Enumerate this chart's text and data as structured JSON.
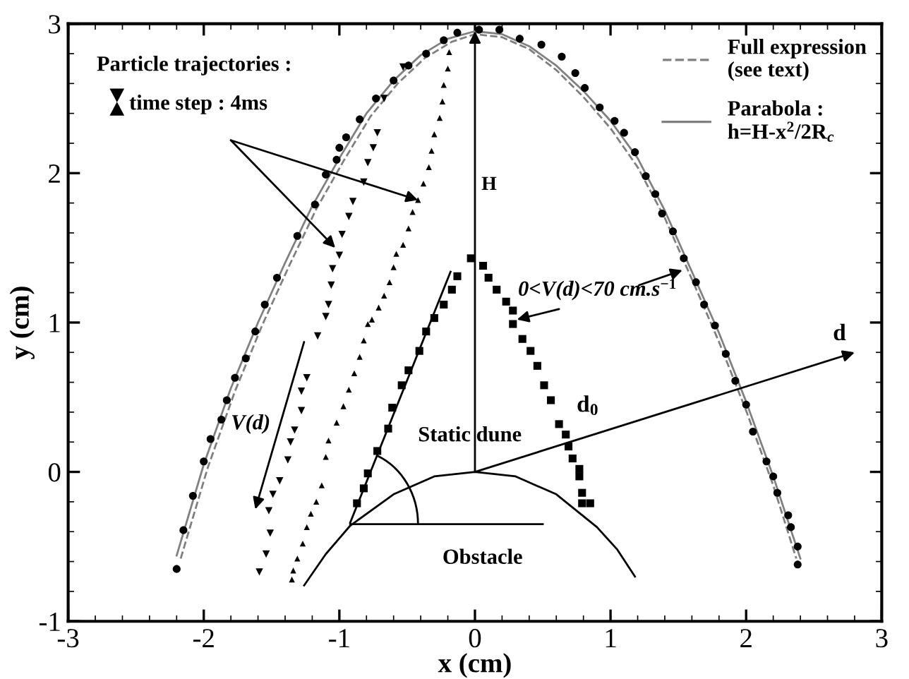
{
  "chart_data": {
    "type": "scatter",
    "xlabel": "x (cm)",
    "ylabel": "y (cm)",
    "xlim": [
      -3,
      3
    ],
    "ylim": [
      -1,
      3
    ],
    "xticks": [
      -3,
      -2,
      -1,
      0,
      1,
      2,
      3
    ],
    "yticks": [
      -1,
      0,
      1,
      2,
      3
    ],
    "grid": false,
    "legend": "top right",
    "annotations": [
      "Particle trajectories :",
      {
        "text": "time step : 4ms",
        "x": -0.42,
        "y": 1.82
      },
      "H",
      "V(d)",
      "0<V(d)<70 cm.s$^{−1}$",
      "d",
      "d$_{0}$",
      "Static dune",
      "Obstacle"
    ],
    "series": [
      {
        "marker": "circle",
        "color": "#000000",
        "x": [
          -2.2,
          -2.15,
          -2.08,
          -2.0,
          -1.95,
          -1.87,
          -1.83,
          -1.77,
          -1.69,
          -1.62,
          -1.55,
          -1.46,
          -1.31,
          -1.18,
          -1.1,
          -1.02,
          -1.0,
          -0.95,
          -0.85,
          -0.73,
          -0.6,
          -0.49,
          -0.36,
          -0.23,
          -0.13,
          0.03,
          0.18,
          0.33,
          0.49,
          0.64,
          0.74,
          0.81,
          0.92,
          1.03,
          1.1,
          1.18,
          1.26,
          1.33,
          1.38,
          1.46,
          1.54,
          1.63,
          1.69,
          1.77,
          1.85,
          1.92,
          2.0,
          2.05,
          2.15,
          2.2,
          2.23,
          2.31,
          2.33,
          2.38,
          2.38
        ],
        "values": [
          -0.65,
          -0.39,
          -0.16,
          0.07,
          0.22,
          0.35,
          0.48,
          0.63,
          0.76,
          0.94,
          1.12,
          1.3,
          1.58,
          1.79,
          1.99,
          2.09,
          2.17,
          2.24,
          2.36,
          2.5,
          2.62,
          2.72,
          2.8,
          2.89,
          2.94,
          2.96,
          2.96,
          2.9,
          2.86,
          2.78,
          2.67,
          2.57,
          2.44,
          2.35,
          2.27,
          2.14,
          1.98,
          1.86,
          1.73,
          1.61,
          1.43,
          1.27,
          1.12,
          0.98,
          0.79,
          0.61,
          0.45,
          0.27,
          0.07,
          -0.03,
          -0.14,
          -0.29,
          -0.37,
          -0.5,
          -0.62
        ]
      },
      {
        "marker": "triangle_down",
        "color": "#000000",
        "x": [
          -0.53,
          -0.67,
          -0.72,
          -0.75,
          -0.79,
          -0.82,
          -0.9,
          -0.93,
          -0.98,
          -1.0,
          -1.05,
          -1.06,
          -1.08,
          -1.1,
          -1.16,
          -1.24,
          -1.28,
          -1.28,
          -1.33,
          -1.36,
          -1.38,
          -1.44,
          -1.49,
          -1.52,
          -1.51,
          -1.54,
          -1.59
        ],
        "values": [
          2.71,
          2.5,
          2.27,
          2.17,
          2.07,
          1.94,
          1.81,
          1.71,
          1.59,
          1.45,
          1.36,
          1.25,
          1.12,
          1.04,
          0.91,
          0.63,
          0.54,
          0.41,
          0.28,
          0.2,
          0.08,
          -0.06,
          -0.15,
          -0.26,
          -0.41,
          -0.55,
          -0.67
        ]
      },
      {
        "marker": "triangle",
        "color": "#000000",
        "x": [
          -0.19,
          -0.2,
          -0.23,
          -0.24,
          -0.26,
          -0.3,
          -0.32,
          -0.34,
          -0.38,
          -0.42,
          -0.46,
          -0.49,
          -0.53,
          -0.58,
          -0.6,
          -0.63,
          -0.67,
          -0.71,
          -0.76,
          -0.79,
          -0.82,
          -0.85,
          -0.89,
          -0.93,
          -0.97,
          -1.02,
          -1.08,
          -1.1,
          -1.13,
          -1.17,
          -1.21,
          -1.24,
          -1.27,
          -1.31,
          -1.34,
          -1.35
        ],
        "values": [
          2.81,
          2.7,
          2.59,
          2.48,
          2.37,
          2.26,
          2.15,
          2.04,
          1.93,
          1.82,
          1.74,
          1.63,
          1.52,
          1.46,
          1.37,
          1.27,
          1.18,
          1.1,
          1.02,
          0.99,
          0.88,
          0.77,
          0.66,
          0.55,
          0.44,
          0.33,
          0.21,
          0.1,
          -0.09,
          -0.2,
          -0.28,
          -0.37,
          -0.48,
          -0.58,
          -0.66,
          -0.72
        ]
      },
      {
        "marker": "square",
        "color": "#000000",
        "x": [
          -0.87,
          -0.82,
          -0.79,
          -0.72,
          -0.64,
          -0.61,
          -0.54,
          -0.49,
          -0.41,
          -0.36,
          -0.3,
          -0.23,
          -0.17,
          -0.13,
          -0.03,
          0.06,
          0.1,
          0.16,
          0.23,
          0.28,
          0.28,
          0.35,
          0.41,
          0.46,
          0.51,
          0.56,
          0.62,
          0.67,
          0.69,
          0.72,
          0.77,
          0.77,
          0.79,
          0.79,
          0.85
        ],
        "values": [
          -0.21,
          -0.11,
          -0.01,
          0.14,
          0.29,
          0.43,
          0.58,
          0.68,
          0.81,
          0.94,
          1.03,
          1.12,
          1.22,
          1.31,
          1.43,
          1.38,
          1.3,
          1.22,
          1.14,
          1.08,
          0.99,
          0.89,
          0.81,
          0.71,
          0.58,
          0.48,
          0.32,
          0.25,
          0.17,
          0.09,
          0.02,
          -0.03,
          -0.14,
          -0.21,
          -0.21
        ]
      },
      {
        "type": "line",
        "name": "Full expression\n(see text)",
        "line_style": "dashed",
        "color": "#808080",
        "x": [
          -2.17,
          -1.97,
          -1.77,
          -1.57,
          -1.37,
          -1.17,
          -0.97,
          -0.77,
          -0.57,
          -0.37,
          -0.17,
          0.0,
          0.2,
          0.4,
          0.6,
          0.8,
          1.0,
          1.2,
          1.4,
          1.6,
          1.8,
          2.0,
          2.2,
          2.37
        ],
        "values": [
          -0.58,
          0.03,
          0.54,
          0.98,
          1.38,
          1.76,
          2.08,
          2.38,
          2.6,
          2.77,
          2.88,
          2.93,
          2.91,
          2.83,
          2.69,
          2.51,
          2.3,
          2.04,
          1.7,
          1.29,
          0.87,
          0.41,
          -0.09,
          -0.58
        ]
      },
      {
        "type": "line",
        "name": "Parabola :\nh=H-x$^{2}$/2R$_{c}$",
        "line_style": "solid",
        "color": "#808080",
        "x": [
          -2.2,
          -2.0,
          -1.8,
          -1.6,
          -1.4,
          -1.2,
          -1.0,
          -0.8,
          -0.6,
          -0.4,
          -0.2,
          0.0,
          0.2,
          0.4,
          0.6,
          0.8,
          1.0,
          1.2,
          1.4,
          1.6,
          1.8,
          2.0,
          2.2,
          2.4
        ],
        "values": [
          -0.56,
          0.05,
          0.56,
          1.0,
          1.4,
          1.78,
          2.1,
          2.4,
          2.62,
          2.79,
          2.9,
          2.95,
          2.93,
          2.85,
          2.72,
          2.55,
          2.35,
          2.1,
          1.75,
          1.34,
          0.93,
          0.47,
          -0.03,
          -0.58
        ]
      },
      {
        "type": "line",
        "line_style": "solid",
        "color": "#000000",
        "x": [
          -0.92,
          -0.18
        ],
        "values": [
          -0.34,
          1.34
        ]
      },
      {
        "type": "line",
        "line_style": "solid",
        "color": "#000000",
        "x": [
          -1.26,
          -1.1,
          -0.92,
          -0.6,
          -0.3,
          0.0,
          0.3,
          0.6,
          0.9,
          1.05,
          1.18
        ],
        "values": [
          -0.76,
          -0.55,
          -0.36,
          -0.15,
          -0.03,
          0.0,
          -0.03,
          -0.15,
          -0.37,
          -0.52,
          -0.7
        ]
      }
    ]
  }
}
